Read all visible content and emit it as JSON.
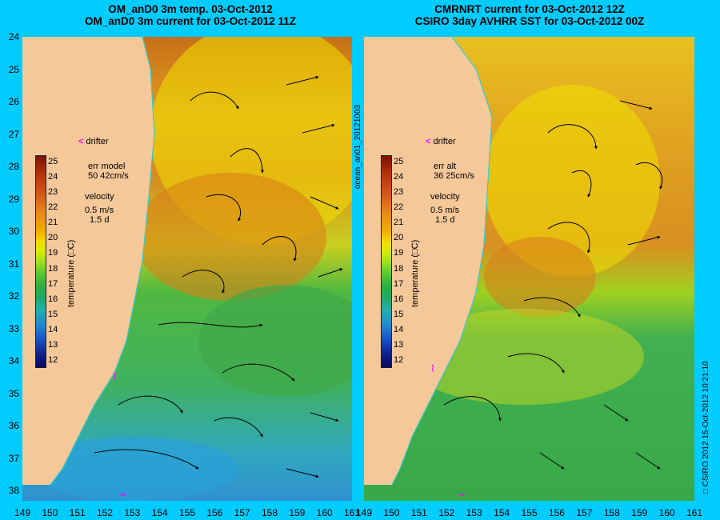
{
  "left_panel": {
    "title_line1": "OM_anD0 3m temp. 03-Oct-2012",
    "title_line2": "OM_anD0 3m current for 03-Oct-2012 11Z",
    "legend": {
      "drifter_label": "drifter",
      "err_label": "err model",
      "err_value": "50 42cm/s",
      "velocity_label": "velocity",
      "velocity_scale": "0.5 m/s",
      "velocity_time": "1.5 d"
    },
    "colorbar_label": "temperature (□C)"
  },
  "right_panel": {
    "title_line1": "CMRNRT current for 03-Oct-2012 12Z",
    "title_line2": "CSIRO 3day AVHRR SST for 03-Oct-2012 00Z",
    "legend": {
      "drifter_label": "drifter",
      "err_label": "err alt",
      "err_value": "36 25cm/s",
      "velocity_label": "velocity",
      "velocity_scale": "0.5 m/s",
      "velocity_time": "1.5 d"
    },
    "colorbar_label": "temperature (□C)"
  },
  "center_vertical_text": "ocean_an01_20121003",
  "right_vertical_text": "□ CSIRO 2012    15-Oct-2012 10:21:10",
  "colorbar_ticks": [
    "25",
    "24",
    "23",
    "22",
    "21",
    "20",
    "19",
    "18",
    "17",
    "16",
    "15",
    "14",
    "13",
    "12"
  ],
  "y_axis_labels": [
    "24",
    "25",
    "26",
    "27",
    "28",
    "29",
    "30",
    "31",
    "32",
    "33",
    "34",
    "35",
    "36",
    "37",
    "38"
  ],
  "x_axis_labels": [
    "149",
    "150",
    "151",
    "152",
    "153",
    "154",
    "155",
    "156",
    "157",
    "158",
    "159",
    "160",
    "161"
  ],
  "colors": {
    "background": "#00ccff",
    "land": "#f5c89a",
    "warm_sst": "#d98a1a",
    "cool_sst": "#40b040",
    "coast_line": "#33cccc",
    "drifter": "#ff00ff"
  }
}
